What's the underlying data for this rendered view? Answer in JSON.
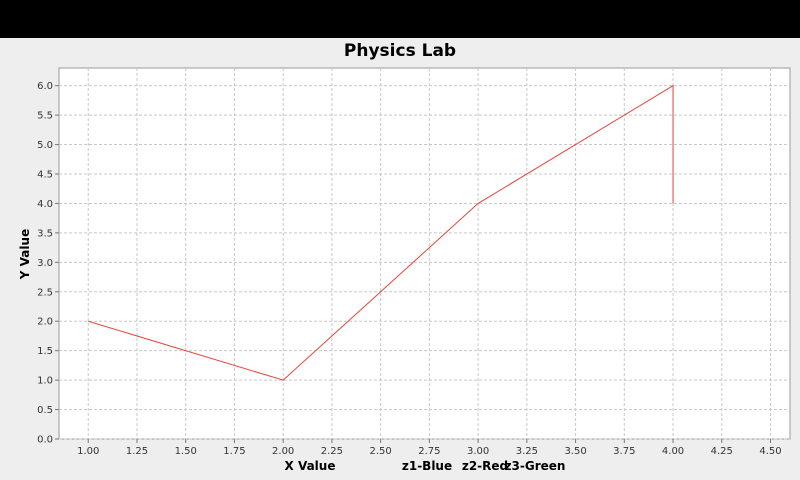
{
  "chart_data": {
    "type": "line",
    "title": "Physics Lab",
    "xlabel": "X Value",
    "ylabel": "Y Value",
    "xlim": [
      0.85,
      4.6
    ],
    "ylim": [
      0,
      6.3
    ],
    "x_ticks": [
      "1.00",
      "1.25",
      "1.50",
      "1.75",
      "2.00",
      "2.25",
      "2.50",
      "2.75",
      "3.00",
      "3.25",
      "3.50",
      "3.75",
      "4.00",
      "4.25",
      "4.50"
    ],
    "y_ticks": [
      "0.0",
      "0.5",
      "1.0",
      "1.5",
      "2.0",
      "2.5",
      "3.0",
      "3.5",
      "4.0",
      "4.5",
      "5.0",
      "5.5",
      "6.0"
    ],
    "grid": true,
    "legend": [
      "z1-Blue",
      "z2-Red",
      "z3-Green"
    ],
    "series": [
      {
        "color": "#e8453c",
        "points": [
          [
            1.0,
            2.0
          ],
          [
            2.0,
            1.0
          ],
          [
            3.0,
            4.0
          ],
          [
            4.0,
            6.0
          ],
          [
            4.0,
            4.0
          ]
        ]
      }
    ]
  },
  "colors": {
    "background": "#eeeeee",
    "plot_background": "#ffffff",
    "grid": "#c8c8c8",
    "top_bar": "#000000"
  }
}
